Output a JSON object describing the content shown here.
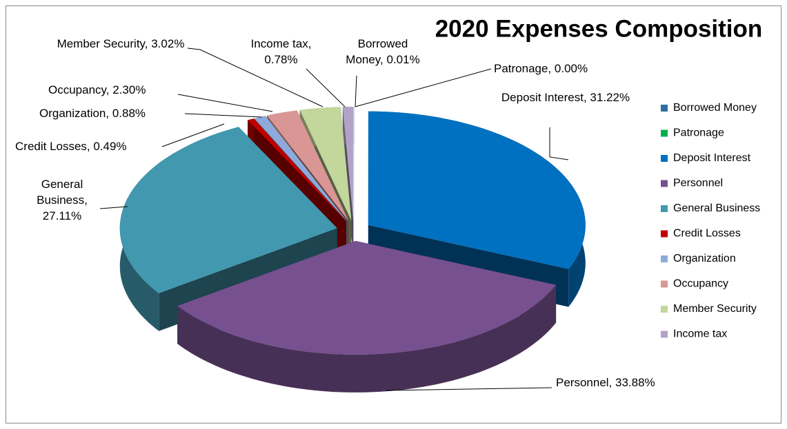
{
  "chart_data": {
    "type": "pie",
    "title": "2020 Expenses Composition",
    "categories": [
      "Borrowed Money",
      "Patronage",
      "Deposit Interest",
      "Personnel",
      "General Business",
      "Credit Losses",
      "Organization",
      "Occupancy",
      "Member Security",
      "Income tax"
    ],
    "values": [
      0.01,
      0.0,
      31.22,
      33.88,
      27.11,
      0.49,
      0.88,
      2.3,
      3.02,
      0.78
    ],
    "value_labels": [
      "Borrowed Money, 0.01%",
      "Patronage, 0.00%",
      "Deposit Interest, 31.22%",
      "Personnel, 33.88%",
      "General Business, 27.11%",
      "Credit Losses, 0.49%",
      "Organization, 0.88%",
      "Occupancy, 2.30%",
      "Member Security, 3.02%",
      "Income tax, 0.78%"
    ],
    "colors": [
      "#2e6da4",
      "#00b050",
      "#0070c0",
      "#76508f",
      "#4198af",
      "#c00000",
      "#8eaadb",
      "#d99694",
      "#c3d69b",
      "#b3a2c7"
    ],
    "legend": "right"
  }
}
